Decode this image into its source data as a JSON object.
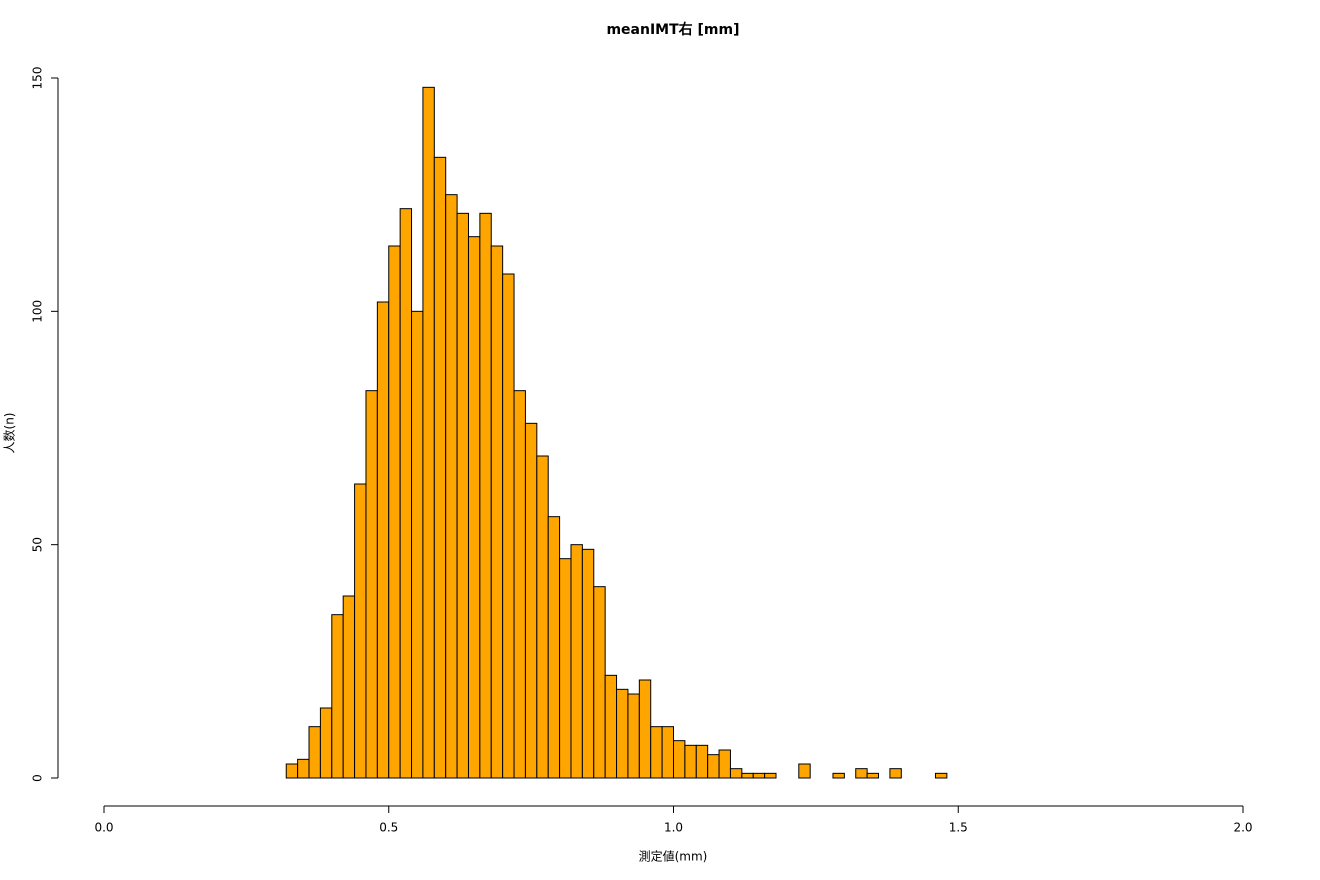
{
  "chart_data": {
    "type": "histogram",
    "title": "meanIMT右 [mm]",
    "x_label": "測定値(mm)",
    "y_label": "人数(n)",
    "bins": [
      0.32,
      0.34,
      0.36,
      0.38,
      0.4,
      0.42,
      0.44,
      0.46,
      0.48,
      0.5,
      0.52,
      0.54,
      0.56,
      0.58,
      0.6,
      0.62,
      0.64,
      0.66,
      0.68,
      0.7,
      0.72,
      0.74,
      0.76,
      0.78,
      0.8,
      0.82,
      0.84,
      0.86,
      0.88,
      0.9,
      0.92,
      0.94,
      0.96,
      0.98,
      1.0,
      1.02,
      1.04,
      1.06,
      1.08,
      1.1,
      1.12,
      1.14,
      1.16,
      1.18,
      1.2,
      1.22,
      1.24,
      1.26,
      1.28,
      1.3,
      1.32,
      1.34,
      1.36,
      1.38,
      1.4,
      1.42,
      1.44,
      1.46,
      1.48
    ],
    "values": [
      3,
      4,
      11,
      15,
      35,
      39,
      63,
      83,
      102,
      114,
      122,
      100,
      148,
      133,
      125,
      121,
      116,
      121,
      114,
      108,
      83,
      76,
      69,
      56,
      47,
      50,
      49,
      41,
      22,
      19,
      18,
      21,
      11,
      11,
      8,
      7,
      7,
      5,
      6,
      2,
      1,
      1,
      1,
      0,
      0,
      3,
      0,
      0,
      1,
      0,
      2,
      1,
      0,
      2,
      0,
      0,
      0,
      1
    ],
    "color": "#ffa500",
    "xlim": [
      0,
      2
    ],
    "xticks": [
      {
        "value": 0,
        "label": "0.0"
      },
      0.5,
      {
        "value": 1,
        "label": "1.0"
      },
      1.5,
      {
        "value": 2,
        "label": "2.0"
      }
    ],
    "ylim": [
      0,
      150
    ],
    "yticks": [
      0,
      50,
      100,
      150
    ]
  }
}
